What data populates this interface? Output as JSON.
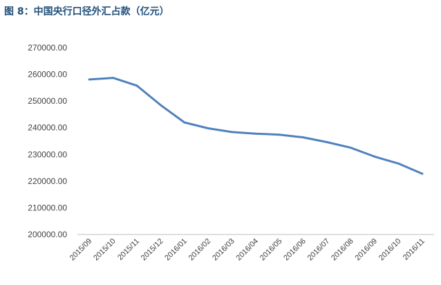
{
  "chart_data": {
    "type": "line",
    "title": "图 8：中国央行口径外汇占款（亿元）",
    "xlabel": "",
    "ylabel": "",
    "grid": false,
    "legend": "none",
    "ylim": [
      200000,
      270000
    ],
    "yticks": [
      "200000.00",
      "210000.00",
      "220000.00",
      "230000.00",
      "240000.00",
      "250000.00",
      "260000.00",
      "270000.00"
    ],
    "categories": [
      "2015/09",
      "2015/10",
      "2015/11",
      "2015/12",
      "2016/01",
      "2016/02",
      "2016/03",
      "2016/04",
      "2016/05",
      "2016/06",
      "2016/07",
      "2016/08",
      "2016/09",
      "2016/10",
      "2016/11"
    ],
    "series": [
      {
        "color": "#4f81bd",
        "values": [
          258100,
          258700,
          255800,
          248500,
          242000,
          239800,
          238400,
          237800,
          237400,
          236400,
          234600,
          232500,
          229200,
          226600,
          222800
        ]
      }
    ]
  }
}
